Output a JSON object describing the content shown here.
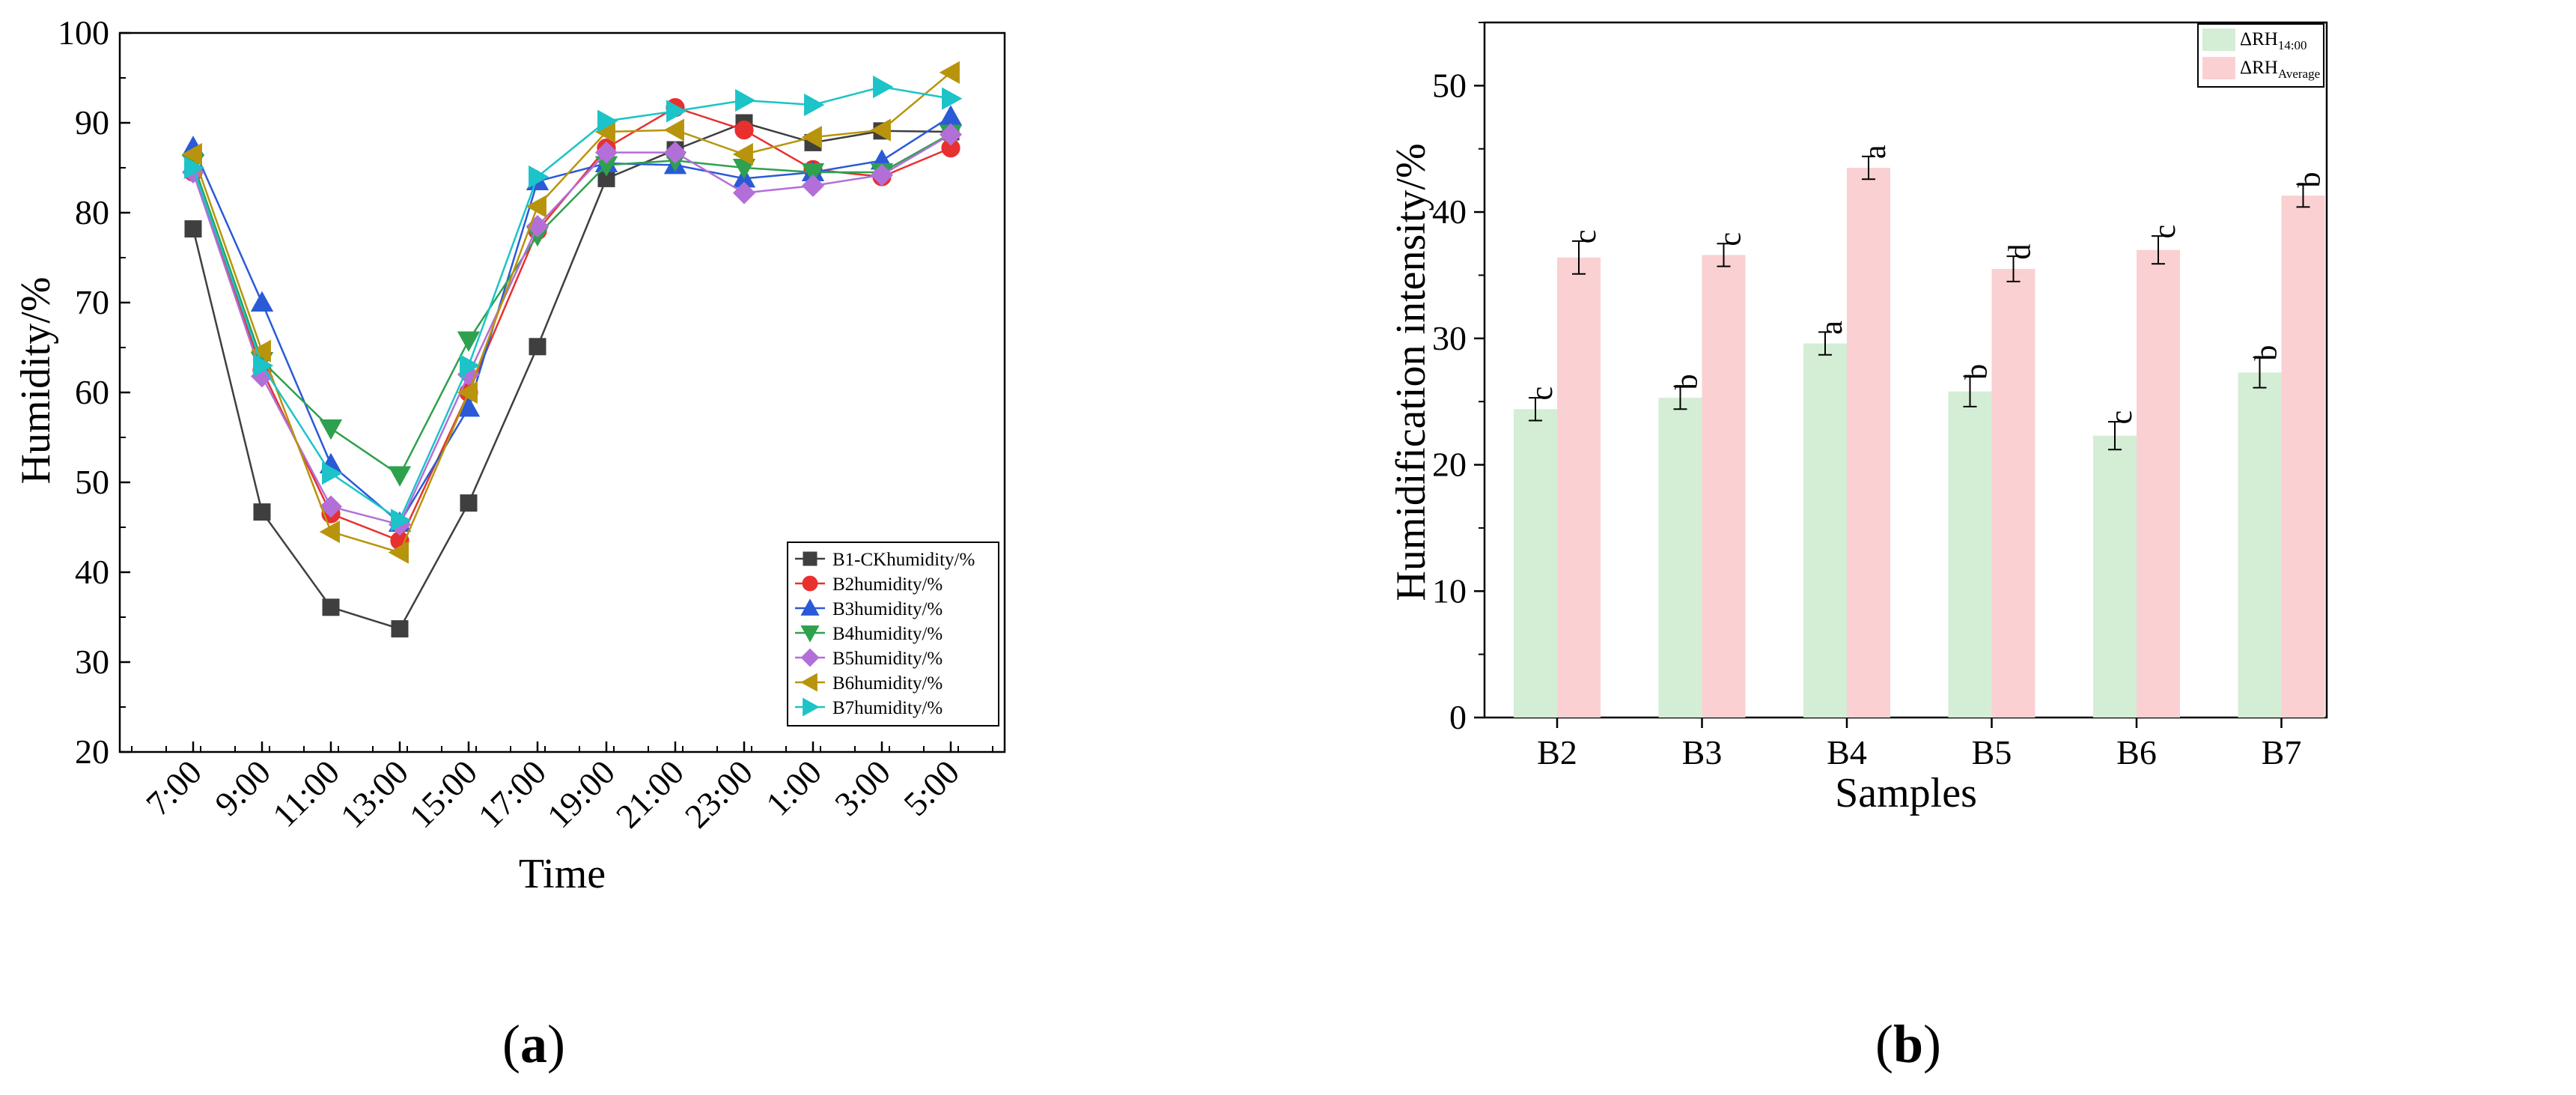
{
  "chart_data": [
    {
      "type": "line",
      "panel_label_letter": "a",
      "xlabel": "Time",
      "ylabel": "Humidity/%",
      "categories": [
        "7:00",
        "9:00",
        "11:00",
        "13:00",
        "15:00",
        "17:00",
        "19:00",
        "21:00",
        "23:00",
        "1:00",
        "3:00",
        "5:00"
      ],
      "ylim": [
        20,
        100
      ],
      "yticks": [
        20,
        30,
        40,
        50,
        60,
        70,
        80,
        90,
        100
      ],
      "legend_position": "bottom-right",
      "grid": false,
      "series": [
        {
          "name": "B1-CKhumidity/%",
          "color": "#3f3f3f",
          "marker": "square",
          "values": [
            78.2,
            46.7,
            36.1,
            33.7,
            47.7,
            65.1,
            83.8,
            87.0,
            90.0,
            87.8,
            89.1,
            89.0
          ]
        },
        {
          "name": "B2humidity/%",
          "color": "#e8302e",
          "marker": "circle",
          "values": [
            84.5,
            62.5,
            46.5,
            43.5,
            60.0,
            78.0,
            87.2,
            91.7,
            89.2,
            84.8,
            84.0,
            87.2
          ]
        },
        {
          "name": "B3humidity/%",
          "color": "#2a5ad6",
          "marker": "triangle-up",
          "values": [
            87.3,
            70.0,
            52.0,
            45.5,
            58.3,
            83.5,
            85.5,
            85.3,
            83.8,
            84.5,
            85.8,
            90.7
          ]
        },
        {
          "name": "B4humidity/%",
          "color": "#2ea14e",
          "marker": "triangle-down",
          "values": [
            85.5,
            63.5,
            56.0,
            50.8,
            65.8,
            77.5,
            85.3,
            85.8,
            85.0,
            84.5,
            84.5,
            88.8
          ]
        },
        {
          "name": "B5humidity/%",
          "color": "#b36fd8",
          "marker": "diamond",
          "values": [
            84.5,
            61.8,
            47.3,
            45.3,
            62.0,
            78.5,
            86.7,
            86.7,
            82.2,
            83.0,
            84.2,
            88.7
          ]
        },
        {
          "name": "B6humidity/%",
          "color": "#b8940c",
          "marker": "triangle-left",
          "values": [
            86.5,
            64.6,
            44.5,
            42.2,
            60.0,
            80.7,
            89.0,
            89.2,
            86.5,
            88.4,
            89.2,
            95.6
          ]
        },
        {
          "name": "B7humidity/%",
          "color": "#1cc3c8",
          "marker": "triangle-right",
          "values": [
            85.0,
            63.0,
            51.0,
            45.8,
            63.0,
            84.0,
            90.2,
            91.3,
            92.5,
            92.0,
            94.0,
            92.7
          ]
        }
      ]
    },
    {
      "type": "bar",
      "panel_label_letter": "b",
      "xlabel": "Samples",
      "ylabel": "Humidification intensity/%",
      "categories": [
        "B2",
        "B3",
        "B4",
        "B5",
        "B6",
        "B7"
      ],
      "ylim": [
        0,
        55
      ],
      "yticks": [
        0,
        10,
        20,
        30,
        40,
        50
      ],
      "legend_position": "top-right",
      "grid": false,
      "series": [
        {
          "name": "ΔRH14:00",
          "name_main": "ΔRH",
          "name_sub": "14:00",
          "color": "#d4edd5",
          "values": [
            24.4,
            25.3,
            29.6,
            25.8,
            22.3,
            27.3
          ],
          "errors": [
            0.9,
            0.9,
            0.9,
            1.2,
            1.1,
            1.2
          ],
          "labels": [
            "c",
            "b",
            "a",
            "b",
            "c",
            "b"
          ]
        },
        {
          "name": "ΔRHAverage",
          "name_main": "ΔRH",
          "name_sub": "Average",
          "color": "#fbd0d2",
          "values": [
            36.4,
            36.6,
            43.5,
            35.5,
            37.0,
            41.3
          ],
          "errors": [
            1.3,
            0.9,
            0.9,
            1.0,
            1.1,
            0.9
          ],
          "labels": [
            "c",
            "c",
            "a",
            "d",
            "c",
            "b"
          ]
        }
      ]
    }
  ]
}
